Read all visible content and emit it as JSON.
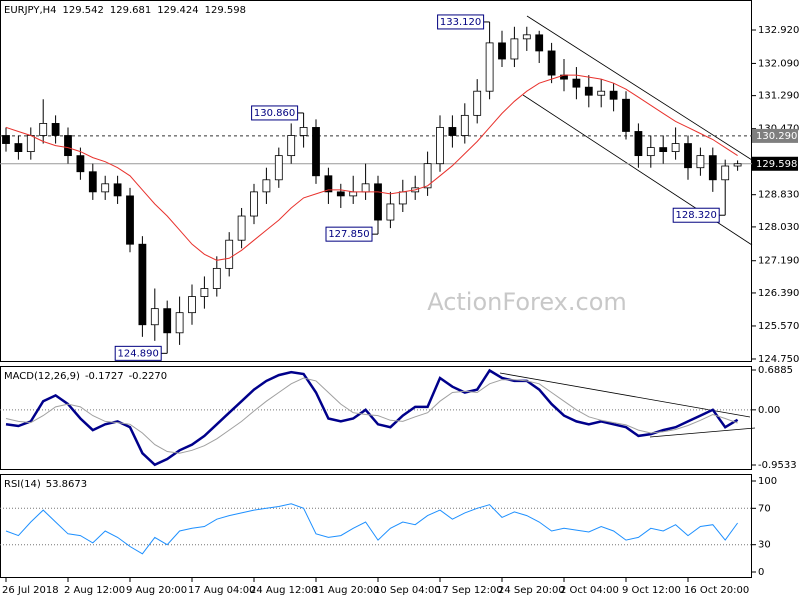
{
  "chart_data": [
    {
      "type": "candlestick",
      "title": "EURJPY,H4",
      "watermark": "ActionForex.com",
      "categories": [
        "26 Jul 2018",
        null,
        null,
        null,
        null,
        "2 Aug 12:00",
        null,
        null,
        null,
        null,
        "9 Aug 20:00",
        null,
        null,
        null,
        null,
        "17 Aug 04:00",
        null,
        null,
        null,
        null,
        "24 Aug 12:00",
        null,
        null,
        null,
        null,
        "31 Aug 20:00",
        null,
        null,
        null,
        null,
        "10 Sep 04:00",
        null,
        null,
        null,
        null,
        "17 Sep 12:00",
        null,
        null,
        null,
        null,
        "24 Sep 20:00",
        null,
        null,
        null,
        null,
        "2 Oct 04:00",
        null,
        null,
        null,
        null,
        "9 Oct 12:00",
        null,
        null,
        null,
        null,
        "16 Oct 20:00",
        null,
        null,
        null,
        null
      ],
      "open": [
        130.3,
        130.1,
        129.9,
        130.3,
        130.6,
        130.3,
        129.8,
        129.4,
        128.9,
        129.1,
        128.8,
        127.6,
        125.6,
        126.0,
        125.4,
        125.9,
        126.3,
        126.5,
        127.0,
        127.7,
        128.3,
        128.9,
        129.2,
        129.8,
        130.3,
        130.5,
        129.3,
        128.9,
        128.8,
        128.9,
        129.1,
        128.2,
        128.6,
        128.9,
        129.0,
        129.6,
        130.5,
        130.3,
        130.8,
        131.4,
        132.6,
        132.2,
        132.7,
        132.8,
        132.4,
        131.8,
        131.7,
        131.5,
        131.3,
        131.4,
        131.2,
        130.4,
        129.8,
        130.0,
        129.9,
        130.1,
        129.5,
        129.8,
        129.2,
        129.542
      ],
      "high": [
        130.5,
        130.3,
        130.5,
        131.2,
        130.8,
        130.5,
        130.0,
        129.6,
        129.3,
        129.3,
        129.0,
        127.8,
        126.5,
        126.2,
        126.3,
        126.6,
        126.8,
        127.3,
        127.9,
        128.5,
        129.1,
        129.5,
        130.0,
        130.6,
        130.86,
        130.7,
        129.5,
        129.1,
        129.3,
        129.6,
        129.3,
        128.9,
        129.2,
        129.3,
        129.9,
        130.8,
        130.8,
        131.1,
        131.7,
        133.12,
        132.9,
        133.0,
        133.0,
        132.9,
        132.6,
        132.2,
        132.0,
        131.8,
        131.7,
        131.6,
        131.4,
        130.6,
        130.3,
        130.3,
        130.5,
        130.3,
        130.0,
        130.0,
        129.7,
        129.681
      ],
      "low": [
        129.9,
        129.7,
        129.7,
        130.1,
        130.1,
        129.6,
        129.2,
        128.7,
        128.7,
        128.6,
        127.4,
        125.3,
        125.2,
        124.89,
        125.1,
        125.6,
        126.0,
        126.3,
        126.8,
        127.5,
        128.1,
        128.6,
        129.0,
        129.6,
        130.0,
        129.1,
        128.6,
        128.5,
        128.6,
        128.7,
        127.85,
        128.0,
        128.4,
        128.7,
        128.8,
        129.4,
        130.0,
        130.1,
        130.6,
        131.2,
        132.0,
        132.0,
        132.4,
        132.1,
        131.6,
        131.4,
        131.2,
        131.0,
        131.0,
        130.9,
        130.2,
        129.5,
        129.5,
        129.6,
        129.7,
        129.2,
        129.3,
        128.9,
        128.32,
        129.424
      ],
      "close": [
        130.1,
        129.9,
        130.3,
        130.6,
        130.3,
        129.8,
        129.4,
        128.9,
        129.1,
        128.8,
        127.6,
        125.6,
        126.0,
        125.4,
        125.9,
        126.3,
        126.5,
        127.0,
        127.7,
        128.3,
        128.9,
        129.2,
        129.8,
        130.3,
        130.5,
        129.3,
        128.9,
        128.8,
        128.9,
        129.1,
        128.2,
        128.6,
        128.9,
        129.0,
        129.6,
        130.5,
        130.3,
        130.8,
        131.4,
        132.6,
        132.2,
        132.7,
        132.8,
        132.4,
        131.8,
        131.7,
        131.5,
        131.3,
        131.4,
        131.2,
        130.4,
        129.8,
        130.0,
        129.9,
        130.1,
        129.5,
        129.8,
        129.2,
        129.542,
        129.598
      ],
      "up_color": "#ffffff",
      "down_color": "#000000",
      "wick_color": "#000000",
      "series": [
        {
          "color": "#e8322d",
          "values": [
            130.5,
            130.4,
            130.3,
            130.15,
            130.05,
            130.0,
            129.9,
            129.75,
            129.65,
            129.5,
            129.3,
            128.95,
            128.6,
            128.3,
            127.95,
            127.6,
            127.35,
            127.2,
            127.25,
            127.45,
            127.7,
            127.95,
            128.2,
            128.5,
            128.75,
            128.85,
            128.95,
            128.95,
            128.9,
            128.9,
            128.9,
            128.85,
            128.9,
            128.95,
            129.05,
            129.3,
            129.55,
            129.85,
            130.15,
            130.5,
            130.85,
            131.15,
            131.4,
            131.6,
            131.7,
            131.8,
            131.8,
            131.75,
            131.7,
            131.6,
            131.45,
            131.25,
            131.05,
            130.85,
            130.65,
            130.5,
            130.35,
            130.2,
            130.0,
            129.8
          ]
        }
      ],
      "ylim": [
        124.675,
        133.665
      ],
      "yticks": [
        {
          "value": 132.92,
          "label": "132.920"
        },
        {
          "value": 132.09,
          "label": "132.090"
        },
        {
          "value": 131.29,
          "label": "131.290"
        },
        {
          "value": 130.47,
          "label": "130.470"
        },
        {
          "value": 128.83,
          "label": "128.830"
        },
        {
          "value": 128.03,
          "label": "128.030"
        },
        {
          "value": 127.19,
          "label": "127.190"
        },
        {
          "value": 126.39,
          "label": "126.390"
        },
        {
          "value": 125.57,
          "label": "125.570"
        },
        {
          "value": 124.75,
          "label": "124.750"
        }
      ],
      "hlines": [
        {
          "value": 130.29,
          "label": "130.290",
          "style": "dashed",
          "color": "#7f7f7f"
        },
        {
          "value": 129.598,
          "style": "solid",
          "color": "#000000"
        }
      ],
      "annotations": [
        {
          "value": 133.12,
          "label": "133.120"
        },
        {
          "value": 130.86,
          "label": "130.860"
        },
        {
          "value": 127.85,
          "label": "127.850"
        },
        {
          "value": 124.89,
          "label": "124.890"
        },
        {
          "value": 128.32,
          "label": "128.320"
        }
      ]
    },
    {
      "type": "line",
      "title": "MACD(12,26,9)",
      "readout": [
        "-0.1727",
        "-0.2270"
      ],
      "series": [
        {
          "color": "#00008b",
          "width": 2.5,
          "values": [
            -0.25,
            -0.28,
            -0.2,
            0.15,
            0.25,
            0.1,
            -0.15,
            -0.35,
            -0.25,
            -0.2,
            -0.3,
            -0.75,
            -0.95,
            -0.85,
            -0.7,
            -0.6,
            -0.45,
            -0.25,
            -0.05,
            0.15,
            0.35,
            0.5,
            0.6,
            0.65,
            0.62,
            0.3,
            -0.15,
            -0.2,
            -0.15,
            0.0,
            -0.25,
            -0.3,
            -0.1,
            0.05,
            0.05,
            0.55,
            0.4,
            0.3,
            0.35,
            0.68,
            0.55,
            0.5,
            0.5,
            0.35,
            0.1,
            -0.1,
            -0.2,
            -0.25,
            -0.2,
            -0.25,
            -0.3,
            -0.45,
            -0.42,
            -0.35,
            -0.3,
            -0.2,
            -0.1,
            0.0,
            -0.3,
            -0.1727
          ]
        },
        {
          "color": "#a0a0a0",
          "width": 1,
          "values": [
            -0.15,
            -0.2,
            -0.22,
            -0.1,
            0.05,
            0.1,
            0.05,
            -0.1,
            -0.2,
            -0.22,
            -0.25,
            -0.4,
            -0.6,
            -0.72,
            -0.75,
            -0.7,
            -0.62,
            -0.5,
            -0.35,
            -0.2,
            -0.02,
            0.15,
            0.3,
            0.45,
            0.55,
            0.5,
            0.3,
            0.1,
            -0.05,
            -0.08,
            -0.1,
            -0.18,
            -0.2,
            -0.12,
            -0.05,
            0.15,
            0.3,
            0.32,
            0.3,
            0.45,
            0.52,
            0.52,
            0.5,
            0.45,
            0.3,
            0.15,
            0.0,
            -0.12,
            -0.18,
            -0.22,
            -0.26,
            -0.35,
            -0.4,
            -0.38,
            -0.34,
            -0.27,
            -0.18,
            -0.08,
            -0.15,
            -0.227
          ]
        }
      ],
      "ylim": [
        -1.0397,
        0.7576
      ],
      "yticks": [
        0.6885,
        {
          "value": 0,
          "label": "0.00"
        },
        -0.9533
      ],
      "levels": [
        0
      ]
    },
    {
      "type": "line",
      "title": "RSI(14)",
      "series": [
        {
          "color": "#1e90ff",
          "width": 1,
          "values": [
            45,
            40,
            55,
            68,
            55,
            42,
            40,
            32,
            45,
            38,
            28,
            20,
            38,
            30,
            45,
            48,
            50,
            58,
            62,
            65,
            68,
            70,
            72,
            75,
            70,
            42,
            38,
            40,
            48,
            55,
            35,
            48,
            55,
            52,
            62,
            68,
            58,
            65,
            70,
            74,
            60,
            66,
            62,
            55,
            45,
            48,
            46,
            44,
            50,
            45,
            35,
            38,
            48,
            45,
            52,
            40,
            50,
            52,
            35,
            53.8673
          ]
        }
      ],
      "ylim": [
        -6.6,
        107.7
      ],
      "yticks": [
        100,
        70,
        30,
        0
      ],
      "levels": [
        70,
        30
      ]
    }
  ]
}
